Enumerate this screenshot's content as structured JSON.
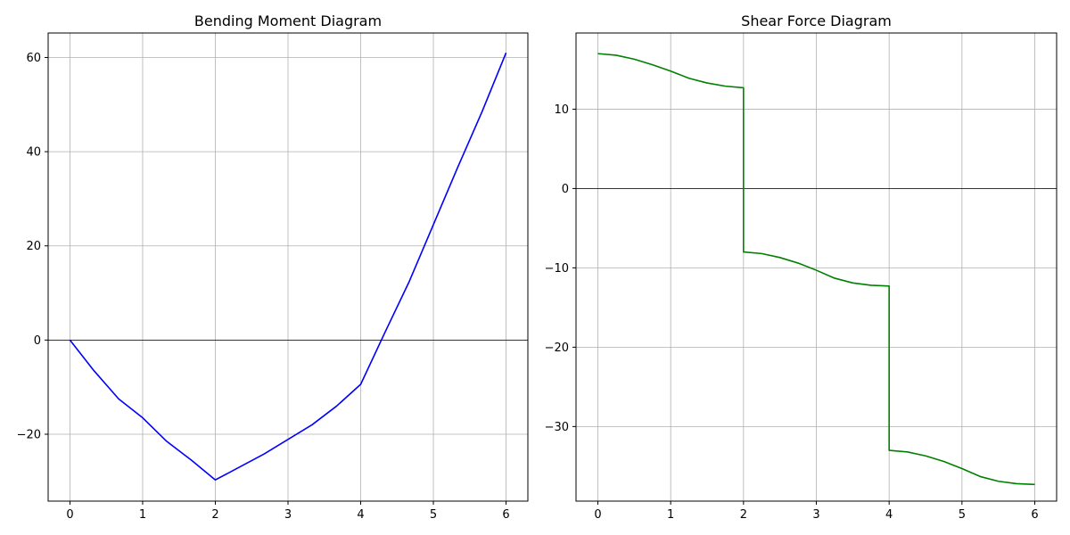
{
  "chart_data": [
    {
      "type": "line",
      "title": "Bending Moment Diagram",
      "xlabel": "",
      "ylabel": "",
      "xlim": [
        -0.3,
        6.3
      ],
      "ylim": [
        -34.2,
        65.2
      ],
      "xticks": [
        0,
        1,
        2,
        3,
        4,
        5,
        6
      ],
      "yticks": [
        -20,
        0,
        20,
        40,
        60
      ],
      "grid": true,
      "zero_line": true,
      "color": "#0000ff",
      "series": [
        {
          "x": [
            0,
            0.33,
            0.67,
            1.0,
            1.33,
            1.67,
            2.0,
            2.33,
            2.67,
            3.0,
            3.33,
            3.67,
            4.0,
            4.33,
            4.67,
            5.0,
            5.33,
            5.67,
            6.0
          ],
          "values": [
            0,
            -6.5,
            -12.5,
            -16.5,
            -21.5,
            -25.5,
            -29.7,
            -27.0,
            -24.2,
            -21.1,
            -18.0,
            -14.0,
            -9.4,
            1.5,
            12.5,
            24.5,
            36.5,
            48.5,
            61.0
          ]
        }
      ]
    },
    {
      "type": "line",
      "title": "Shear Force Diagram",
      "xlabel": "",
      "ylabel": "",
      "xlim": [
        -0.3,
        6.3
      ],
      "ylim": [
        -39.4,
        19.6
      ],
      "xticks": [
        0,
        1,
        2,
        3,
        4,
        5,
        6
      ],
      "yticks": [
        -30,
        -20,
        -10,
        0,
        10
      ],
      "grid": true,
      "zero_line": true,
      "color": "#008000",
      "series": [
        {
          "x": [
            0,
            0.25,
            0.5,
            0.75,
            1.0,
            1.25,
            1.5,
            1.75,
            2.0,
            2.0,
            2.25,
            2.5,
            2.75,
            3.0,
            3.25,
            3.5,
            3.75,
            4.0,
            4.0,
            4.25,
            4.5,
            4.75,
            5.0,
            5.25,
            5.5,
            5.75,
            6.0
          ],
          "values": [
            17.0,
            16.8,
            16.3,
            15.6,
            14.8,
            13.9,
            13.3,
            12.9,
            12.7,
            -8.0,
            -8.2,
            -8.7,
            -9.4,
            -10.3,
            -11.3,
            -11.9,
            -12.2,
            -12.3,
            -33.0,
            -33.2,
            -33.7,
            -34.4,
            -35.3,
            -36.3,
            -36.9,
            -37.2,
            -37.3
          ]
        }
      ]
    }
  ]
}
